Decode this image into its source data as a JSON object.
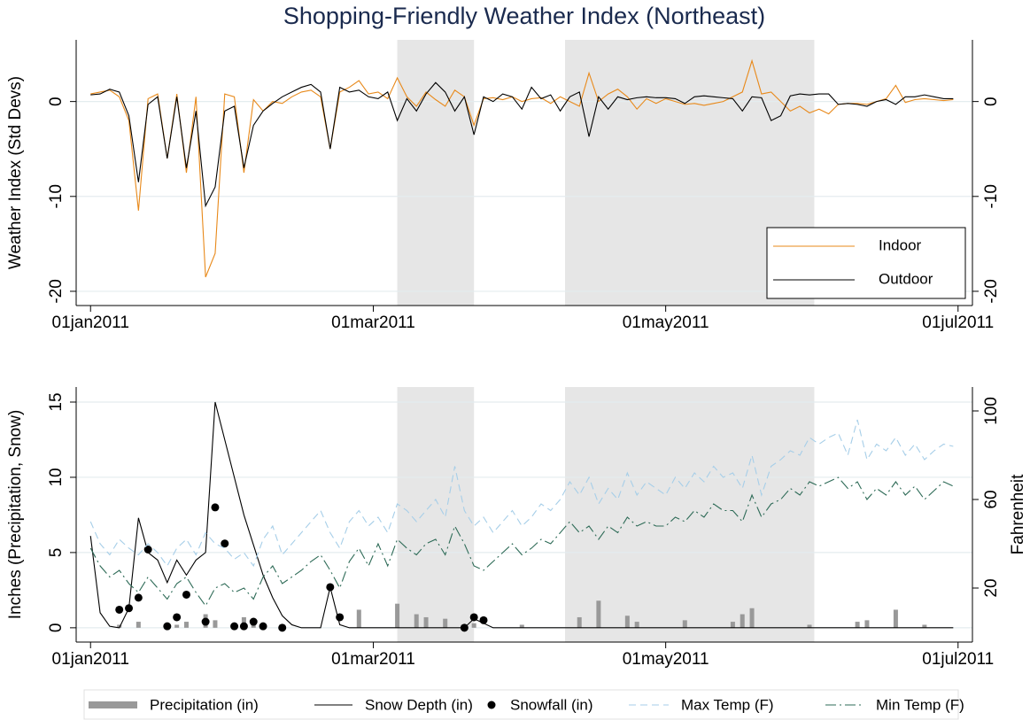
{
  "chart_data": [
    {
      "type": "line",
      "title": "Shopping-Friendly Weather Index (Northeast)",
      "ylabel": "Weather Index (Std Devs)",
      "x": [
        "2011-01-01",
        "2011-01-03",
        "2011-01-05",
        "2011-01-07",
        "2011-01-09",
        "2011-01-11",
        "2011-01-13",
        "2011-01-15",
        "2011-01-17",
        "2011-01-19",
        "2011-01-21",
        "2011-01-23",
        "2011-01-25",
        "2011-01-27",
        "2011-01-29",
        "2011-01-31",
        "2011-02-02",
        "2011-02-04",
        "2011-02-06",
        "2011-02-08",
        "2011-02-10",
        "2011-02-12",
        "2011-02-14",
        "2011-02-16",
        "2011-02-18",
        "2011-02-20",
        "2011-02-22",
        "2011-02-24",
        "2011-02-26",
        "2011-02-28",
        "2011-03-02",
        "2011-03-04",
        "2011-03-06",
        "2011-03-08",
        "2011-03-10",
        "2011-03-12",
        "2011-03-14",
        "2011-03-16",
        "2011-03-18",
        "2011-03-20",
        "2011-03-22",
        "2011-03-24",
        "2011-03-26",
        "2011-03-28",
        "2011-03-30",
        "2011-04-01",
        "2011-04-03",
        "2011-04-05",
        "2011-04-07",
        "2011-04-09",
        "2011-04-11",
        "2011-04-13",
        "2011-04-15",
        "2011-04-17",
        "2011-04-19",
        "2011-04-21",
        "2011-04-23",
        "2011-04-25",
        "2011-04-27",
        "2011-04-29",
        "2011-05-01",
        "2011-05-03",
        "2011-05-05",
        "2011-05-07",
        "2011-05-09",
        "2011-05-11",
        "2011-05-13",
        "2011-05-15",
        "2011-05-17",
        "2011-05-19",
        "2011-05-21",
        "2011-05-23",
        "2011-05-25",
        "2011-05-27",
        "2011-05-29",
        "2011-05-31",
        "2011-06-02",
        "2011-06-04",
        "2011-06-06",
        "2011-06-08",
        "2011-06-10",
        "2011-06-12",
        "2011-06-14",
        "2011-06-16",
        "2011-06-18",
        "2011-06-20",
        "2011-06-22",
        "2011-06-24",
        "2011-06-26",
        "2011-06-28",
        "2011-06-30"
      ],
      "xlim": [
        "2010-12-29",
        "2011-07-04"
      ],
      "xticks": [
        {
          "value": "2011-01-01",
          "label": "01jan2011"
        },
        {
          "value": "2011-03-01",
          "label": "01mar2011"
        },
        {
          "value": "2011-05-01",
          "label": "01may2011"
        },
        {
          "value": "2011-07-01",
          "label": "01jul2011"
        }
      ],
      "ylim": [
        -21.5,
        6.5
      ],
      "yticks": [
        0,
        -10,
        -20
      ],
      "y2lim": [
        -21.5,
        6.5
      ],
      "y2ticks": [
        0,
        -10,
        -20
      ],
      "grid": true,
      "shaded": [
        [
          "2011-03-06",
          "2011-03-22"
        ],
        [
          "2011-04-10",
          "2011-06-01"
        ]
      ],
      "legend": "lower right",
      "series": [
        {
          "name": "Indoor",
          "type": "line",
          "color": "#e8891a",
          "values": [
            0.8,
            1.0,
            1.2,
            0.5,
            -2.0,
            -11.5,
            0.3,
            0.8,
            -6.0,
            0.8,
            -7.5,
            0.5,
            -18.5,
            -16,
            0.8,
            0.5,
            -7.5,
            0.2,
            -1.0,
            0.0,
            -0.2,
            0.5,
            1.0,
            1.2,
            0.5,
            -5.0,
            1.0,
            1.5,
            2.2,
            0.8,
            1.0,
            0.3,
            2.5,
            0.5,
            -0.5,
            1.0,
            0.2,
            -0.5,
            1.2,
            0.5,
            -2.5,
            0.3,
            0.4,
            0.2,
            0.5,
            0.0,
            0.3,
            0.4,
            -0.2,
            0.5,
            0.0,
            -0.5,
            3.0,
            0.0,
            0.8,
            1.3,
            0.5,
            -0.8,
            0.3,
            -0.2,
            0.3,
            0.0,
            -0.3,
            -0.2,
            -0.4,
            -0.2,
            0.0,
            0.5,
            1.0,
            4.3,
            0.8,
            1.0,
            0.0,
            -1.0,
            -0.5,
            -1.2,
            -0.8,
            -1.3,
            -0.3,
            -0.2,
            -0.2,
            -0.3,
            0.0,
            0.3,
            1.7,
            -0.1,
            0.2,
            0.3,
            0.2,
            0.1,
            0.2
          ]
        },
        {
          "name": "Outdoor",
          "type": "line",
          "color": "#000000",
          "values": [
            0.7,
            0.8,
            1.3,
            1.0,
            -1.5,
            -8.5,
            -0.3,
            0.5,
            -6.0,
            0.5,
            -7.0,
            -1.0,
            -11.0,
            -9.0,
            -1.0,
            -0.5,
            -7.0,
            -2.5,
            -1.0,
            -0.2,
            0.5,
            1.0,
            1.5,
            1.8,
            1.0,
            -5.0,
            1.5,
            1.0,
            1.2,
            0.5,
            0.3,
            1.0,
            -2.0,
            0.3,
            -1.0,
            0.8,
            2.0,
            1.0,
            -1.0,
            0.5,
            -3.5,
            0.5,
            0.0,
            0.8,
            0.5,
            -0.8,
            1.5,
            0.3,
            0.7,
            -1.0,
            0.5,
            1.0,
            -3.7,
            0.5,
            -0.8,
            0.5,
            0.2,
            0.4,
            0.5,
            0.4,
            0.4,
            0.3,
            -0.2,
            0.5,
            0.6,
            0.5,
            0.4,
            0.3,
            -1.0,
            0.5,
            0.4,
            -2.0,
            -1.5,
            0.6,
            0.8,
            0.7,
            0.8,
            0.8,
            -0.3,
            -0.2,
            -0.3,
            -0.5,
            0.0,
            0.2,
            -0.3,
            0.5,
            0.5,
            0.7,
            0.5,
            0.3,
            0.3
          ]
        }
      ]
    },
    {
      "type": "combo",
      "ylabel": "Inches (Precipitation, Snow)",
      "y2label": "Fahrenheit",
      "x": [
        "2011-01-01",
        "2011-01-03",
        "2011-01-05",
        "2011-01-07",
        "2011-01-09",
        "2011-01-11",
        "2011-01-13",
        "2011-01-15",
        "2011-01-17",
        "2011-01-19",
        "2011-01-21",
        "2011-01-23",
        "2011-01-25",
        "2011-01-27",
        "2011-01-29",
        "2011-01-31",
        "2011-02-02",
        "2011-02-04",
        "2011-02-06",
        "2011-02-08",
        "2011-02-10",
        "2011-02-12",
        "2011-02-14",
        "2011-02-16",
        "2011-02-18",
        "2011-02-20",
        "2011-02-22",
        "2011-02-24",
        "2011-02-26",
        "2011-02-28",
        "2011-03-02",
        "2011-03-04",
        "2011-03-06",
        "2011-03-08",
        "2011-03-10",
        "2011-03-12",
        "2011-03-14",
        "2011-03-16",
        "2011-03-18",
        "2011-03-20",
        "2011-03-22",
        "2011-03-24",
        "2011-03-26",
        "2011-03-28",
        "2011-03-30",
        "2011-04-01",
        "2011-04-03",
        "2011-04-05",
        "2011-04-07",
        "2011-04-09",
        "2011-04-11",
        "2011-04-13",
        "2011-04-15",
        "2011-04-17",
        "2011-04-19",
        "2011-04-21",
        "2011-04-23",
        "2011-04-25",
        "2011-04-27",
        "2011-04-29",
        "2011-05-01",
        "2011-05-03",
        "2011-05-05",
        "2011-05-07",
        "2011-05-09",
        "2011-05-11",
        "2011-05-13",
        "2011-05-15",
        "2011-05-17",
        "2011-05-19",
        "2011-05-21",
        "2011-05-23",
        "2011-05-25",
        "2011-05-27",
        "2011-05-29",
        "2011-05-31",
        "2011-06-02",
        "2011-06-04",
        "2011-06-06",
        "2011-06-08",
        "2011-06-10",
        "2011-06-12",
        "2011-06-14",
        "2011-06-16",
        "2011-06-18",
        "2011-06-20",
        "2011-06-22",
        "2011-06-24",
        "2011-06-26",
        "2011-06-28",
        "2011-06-30"
      ],
      "xlim": [
        "2010-12-29",
        "2011-07-04"
      ],
      "xticks": [
        {
          "value": "2011-01-01",
          "label": "01jan2011"
        },
        {
          "value": "2011-03-01",
          "label": "01mar2011"
        },
        {
          "value": "2011-05-01",
          "label": "01may2011"
        },
        {
          "value": "2011-07-01",
          "label": "01jul2011"
        }
      ],
      "ylim": [
        -0.95,
        16
      ],
      "yticks": [
        0,
        5,
        10,
        15
      ],
      "y2lim": [
        -4.4,
        110.8
      ],
      "y2ticks": [
        20,
        60,
        100
      ],
      "grid": true,
      "shaded": [
        [
          "2011-03-06",
          "2011-03-22"
        ],
        [
          "2011-04-10",
          "2011-06-01"
        ]
      ],
      "legend": "bottom",
      "series": [
        {
          "name": "Precipitation (in)",
          "type": "bar",
          "color": "#999999",
          "values": [
            0,
            0,
            0,
            0.2,
            0,
            0.4,
            0,
            0,
            0,
            0.2,
            0.4,
            0,
            0.9,
            0.5,
            0,
            0,
            0.7,
            0.3,
            0.2,
            0,
            0,
            0,
            0,
            0,
            0,
            0,
            0,
            0,
            1.2,
            0,
            0,
            0,
            1.6,
            0,
            0.9,
            0.7,
            0,
            0.6,
            0,
            0,
            0.3,
            0,
            0,
            0,
            0,
            0.2,
            0,
            0,
            0,
            0,
            0,
            0.7,
            0,
            1.8,
            0,
            0,
            0.8,
            0.4,
            0,
            0,
            0,
            0,
            0.5,
            0,
            0,
            0,
            0,
            0.4,
            0.9,
            1.3,
            0,
            0,
            0,
            0,
            0,
            0.2,
            0,
            0,
            0,
            0,
            0.4,
            0.5,
            0,
            0,
            1.2,
            0,
            0,
            0.2,
            0,
            0,
            0
          ]
        },
        {
          "name": "Snow Depth (in)",
          "type": "line",
          "color": "#000000",
          "values": [
            6.1,
            1.0,
            0.1,
            0,
            1.3,
            7.3,
            5.0,
            4.5,
            3.0,
            4.5,
            3.5,
            4.5,
            5.0,
            15.0,
            12.5,
            10.0,
            7.5,
            5.5,
            3.5,
            2.0,
            0.8,
            0.2,
            0,
            0,
            0,
            2.7,
            0.2,
            0,
            0,
            0,
            0,
            0,
            0,
            0,
            0,
            0,
            0,
            0,
            0,
            0,
            0.6,
            0.3,
            0,
            0,
            0,
            0,
            0,
            0,
            0,
            0,
            0,
            0,
            0,
            0,
            0,
            0,
            0,
            0,
            0,
            0,
            0,
            0,
            0,
            0,
            0,
            0,
            0,
            0,
            0,
            0,
            0,
            0,
            0,
            0,
            0,
            0,
            0,
            0,
            0,
            0,
            0,
            0,
            0,
            0,
            0,
            0,
            0,
            0,
            0,
            0,
            0
          ]
        },
        {
          "name": "Snowfall (in)",
          "type": "scatter",
          "color": "#000000",
          "values": [
            null,
            null,
            null,
            1.2,
            1.3,
            2.0,
            5.2,
            null,
            0.1,
            0.7,
            2.2,
            null,
            0.4,
            8.0,
            5.6,
            0.1,
            0.1,
            0.4,
            0.1,
            null,
            0,
            null,
            null,
            null,
            null,
            2.7,
            0.7,
            null,
            null,
            null,
            null,
            null,
            null,
            null,
            null,
            null,
            null,
            null,
            null,
            0,
            0.7,
            0.5,
            null,
            null,
            null,
            null,
            null,
            null,
            null,
            null,
            null,
            null,
            null,
            null,
            null,
            null,
            null,
            null,
            null,
            null,
            null,
            null,
            null,
            null,
            null,
            null,
            null,
            null,
            null,
            null,
            null,
            null,
            null,
            null,
            null,
            null,
            null,
            null,
            null,
            null,
            null,
            null,
            null,
            null,
            null,
            null,
            null,
            null,
            null,
            null,
            null
          ]
        },
        {
          "name": "Max Temp (F)",
          "type": "line",
          "dash": "dashed",
          "axis": "y2",
          "color": "#a6cee8",
          "values": [
            50,
            40,
            35,
            42,
            38,
            35,
            40,
            36,
            30,
            38,
            42,
            35,
            45,
            40,
            38,
            33,
            36,
            30,
            42,
            48,
            35,
            40,
            45,
            50,
            55,
            45,
            38,
            50,
            55,
            48,
            52,
            45,
            58,
            55,
            50,
            55,
            60,
            52,
            75,
            55,
            48,
            52,
            45,
            50,
            55,
            48,
            52,
            58,
            55,
            60,
            68,
            62,
            70,
            58,
            65,
            60,
            72,
            62,
            68,
            65,
            62,
            70,
            65,
            72,
            68,
            75,
            70,
            72,
            65,
            80,
            62,
            75,
            78,
            82,
            80,
            88,
            85,
            88,
            90,
            80,
            96,
            78,
            85,
            82,
            88,
            80,
            85,
            78,
            82,
            85,
            84
          ]
        },
        {
          "name": "Min Temp (F)",
          "type": "line",
          "dash": "dash-dot",
          "axis": "y2",
          "color": "#2e6b57",
          "values": [
            38,
            30,
            25,
            28,
            22,
            18,
            25,
            20,
            15,
            22,
            25,
            18,
            12,
            20,
            22,
            18,
            20,
            15,
            25,
            30,
            22,
            25,
            28,
            32,
            35,
            28,
            20,
            32,
            38,
            30,
            40,
            30,
            42,
            38,
            35,
            40,
            42,
            35,
            48,
            40,
            30,
            28,
            32,
            36,
            40,
            35,
            38,
            42,
            40,
            45,
            50,
            45,
            48,
            42,
            48,
            45,
            52,
            48,
            50,
            48,
            48,
            52,
            50,
            55,
            52,
            58,
            55,
            55,
            50,
            62,
            52,
            58,
            60,
            65,
            62,
            68,
            66,
            68,
            70,
            65,
            68,
            60,
            65,
            62,
            68,
            62,
            66,
            60,
            64,
            68,
            66
          ]
        }
      ]
    }
  ]
}
